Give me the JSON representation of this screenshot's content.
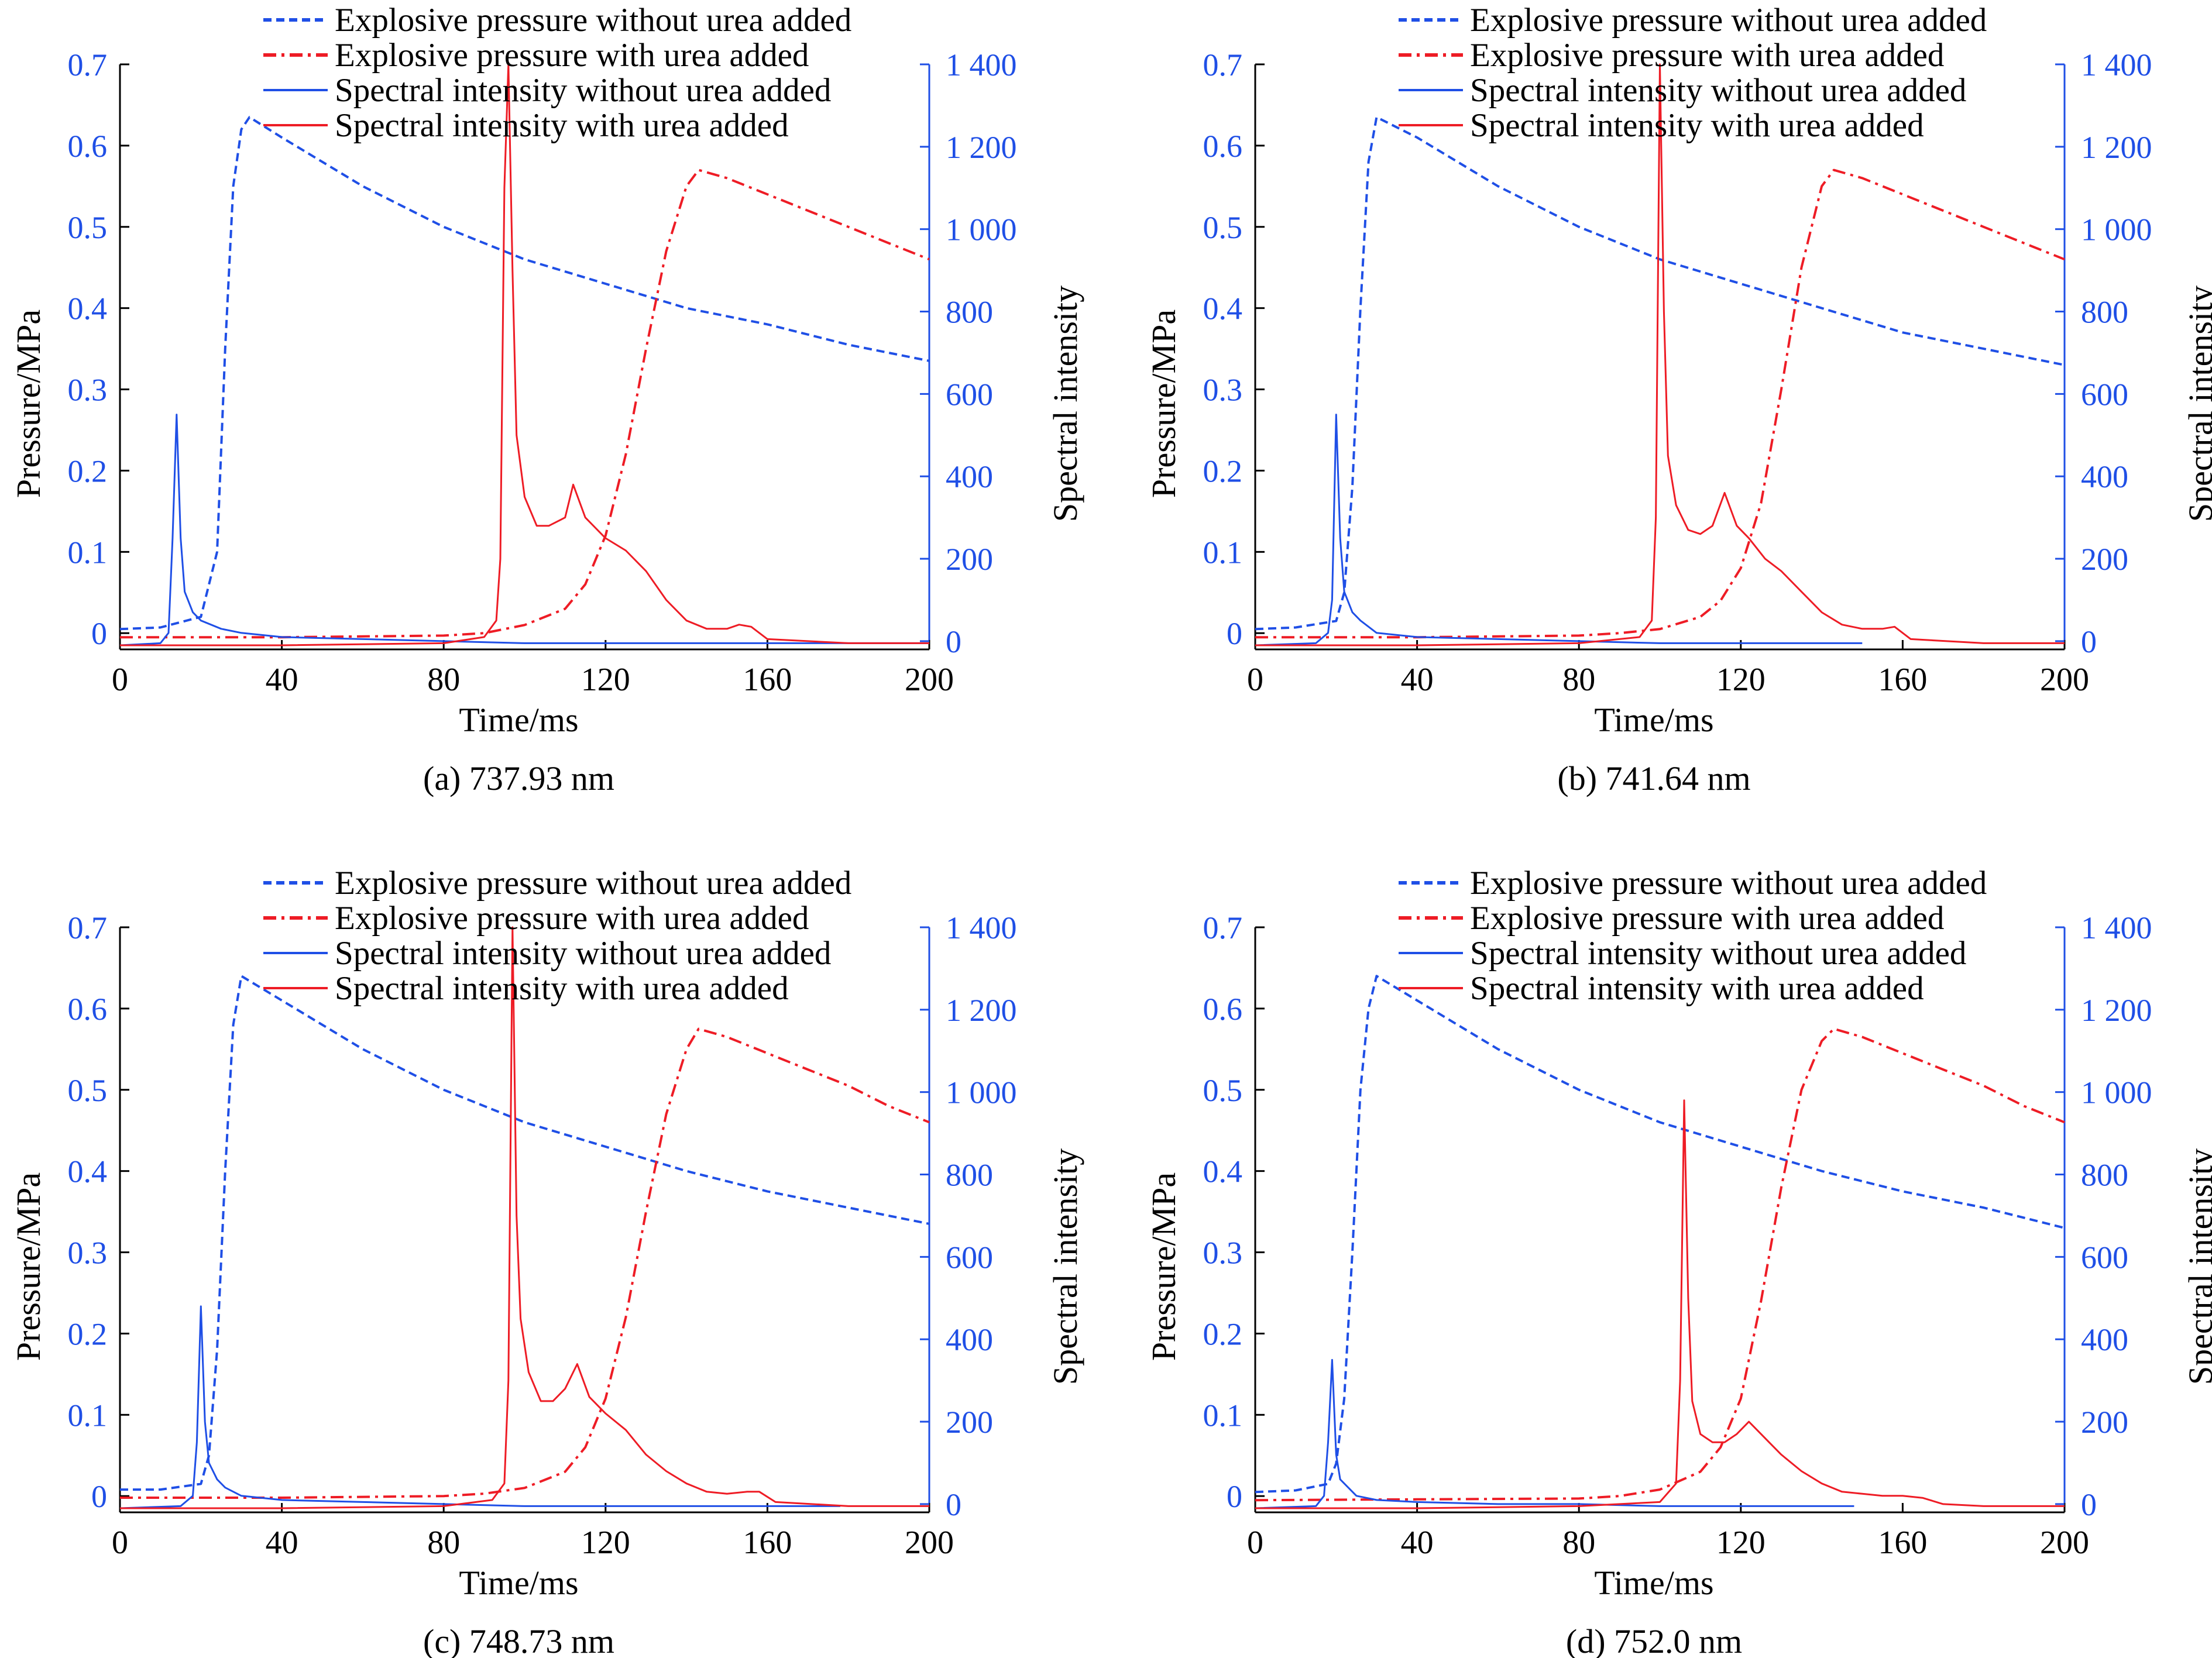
{
  "figure": {
    "legend": [
      {
        "label": "Explosive pressure without urea added",
        "color": "#1f4fe6",
        "dash": "dotted"
      },
      {
        "label": "Explosive pressure with urea added",
        "color": "#ee1c25",
        "dash": "dashdot"
      },
      {
        "label": "Spectral intensity without urea added",
        "color": "#1f4fe6",
        "dash": "solid"
      },
      {
        "label": "Spectral intensity with urea added",
        "color": "#ee1c25",
        "dash": "solid"
      }
    ],
    "xlabel": "Time/ms",
    "ylabel_left": "Pressure/MPa",
    "ylabel_right": "Spectral intensity",
    "xticks": [
      "0",
      "40",
      "80",
      "120",
      "160",
      "200"
    ],
    "yticks_left": [
      "0",
      "0.1",
      "0.2",
      "0.3",
      "0.4",
      "0.5",
      "0.6",
      "0.7"
    ],
    "yticks_right": [
      "0",
      "200",
      "400",
      "600",
      "800",
      "1 000",
      "1 200",
      "1 400"
    ],
    "colors": {
      "blue": "#1f4fe6",
      "red": "#ee1c25",
      "axis": "#000000"
    }
  },
  "chart_data": [
    {
      "type": "line",
      "caption": "(a) 737.93 nm",
      "xlim": [
        0,
        200
      ],
      "ylim_left": [
        -0.02,
        0.7
      ],
      "ylim_right": [
        -0.02,
        1.4
      ],
      "series": [
        {
          "name": "Explosive pressure without urea added",
          "axis": "left",
          "x": [
            0,
            10,
            20,
            24,
            26,
            28,
            30,
            32,
            40,
            60,
            80,
            100,
            120,
            140,
            160,
            180,
            200
          ],
          "y": [
            0.005,
            0.007,
            0.02,
            0.1,
            0.35,
            0.55,
            0.62,
            0.635,
            0.61,
            0.55,
            0.5,
            0.46,
            0.43,
            0.4,
            0.38,
            0.355,
            0.335
          ]
        },
        {
          "name": "Explosive pressure with urea added",
          "axis": "left",
          "x": [
            0,
            40,
            80,
            90,
            100,
            110,
            115,
            120,
            125,
            130,
            135,
            140,
            143,
            150,
            160,
            170,
            180,
            190,
            200
          ],
          "y": [
            -0.005,
            -0.005,
            -0.003,
            0.0,
            0.01,
            0.03,
            0.06,
            0.12,
            0.22,
            0.35,
            0.47,
            0.55,
            0.57,
            0.56,
            0.54,
            0.52,
            0.5,
            0.48,
            0.46
          ]
        },
        {
          "name": "Spectral intensity without urea added",
          "axis": "right",
          "x": [
            0,
            10,
            12,
            13,
            14,
            15,
            16,
            18,
            20,
            25,
            30,
            40,
            60,
            80,
            100,
            120,
            140,
            160,
            200
          ],
          "y": [
            -0.01,
            -0.005,
            0.02,
            0.25,
            0.55,
            0.25,
            0.12,
            0.07,
            0.05,
            0.03,
            0.02,
            0.01,
            0.005,
            0.0,
            -0.005,
            -0.005,
            -0.005,
            -0.005,
            -0.005
          ]
        },
        {
          "name": "Spectral intensity with urea added",
          "axis": "right",
          "x": [
            0,
            40,
            80,
            90,
            93,
            94,
            95,
            96,
            97,
            98,
            100,
            103,
            106,
            110,
            112,
            115,
            120,
            125,
            130,
            135,
            140,
            145,
            150,
            153,
            156,
            160,
            180,
            200
          ],
          "y": [
            -0.01,
            -0.01,
            -0.005,
            0.01,
            0.05,
            0.2,
            1.1,
            1.4,
            0.9,
            0.5,
            0.35,
            0.28,
            0.28,
            0.3,
            0.38,
            0.3,
            0.25,
            0.22,
            0.17,
            0.1,
            0.05,
            0.03,
            0.03,
            0.04,
            0.035,
            0.005,
            -0.005,
            -0.005
          ]
        }
      ]
    },
    {
      "type": "line",
      "caption": "(b) 741.64 nm",
      "xlim": [
        0,
        200
      ],
      "ylim_left": [
        -0.02,
        0.7
      ],
      "ylim_right": [
        -0.02,
        1.4
      ],
      "series": [
        {
          "name": "Explosive pressure without urea added",
          "axis": "left",
          "x": [
            0,
            10,
            20,
            22,
            24,
            26,
            28,
            30,
            40,
            60,
            80,
            100,
            120,
            140,
            160,
            180,
            200
          ],
          "y": [
            0.005,
            0.007,
            0.015,
            0.05,
            0.18,
            0.4,
            0.58,
            0.635,
            0.61,
            0.55,
            0.5,
            0.46,
            0.43,
            0.4,
            0.37,
            0.35,
            0.33
          ]
        },
        {
          "name": "Explosive pressure with urea added",
          "axis": "left",
          "x": [
            0,
            40,
            80,
            90,
            100,
            110,
            115,
            120,
            125,
            130,
            135,
            140,
            143,
            150,
            160,
            170,
            180,
            190,
            200
          ],
          "y": [
            -0.005,
            -0.005,
            -0.003,
            0.0,
            0.005,
            0.02,
            0.04,
            0.08,
            0.16,
            0.3,
            0.45,
            0.55,
            0.57,
            0.56,
            0.54,
            0.52,
            0.5,
            0.48,
            0.46
          ]
        },
        {
          "name": "Spectral intensity without urea added",
          "axis": "right",
          "x": [
            0,
            15,
            18,
            19,
            20,
            21,
            22,
            24,
            26,
            30,
            40,
            60,
            80,
            100,
            120,
            140,
            150
          ],
          "y": [
            -0.01,
            -0.005,
            0.02,
            0.1,
            0.55,
            0.25,
            0.12,
            0.07,
            0.05,
            0.02,
            0.01,
            0.005,
            0.0,
            -0.005,
            -0.005,
            -0.005,
            -0.005
          ]
        },
        {
          "name": "Spectral intensity with urea added",
          "axis": "right",
          "x": [
            0,
            40,
            80,
            95,
            98,
            99,
            100,
            101,
            102,
            104,
            107,
            110,
            113,
            116,
            119,
            122,
            126,
            130,
            135,
            140,
            145,
            150,
            155,
            158,
            162,
            180,
            200
          ],
          "y": [
            -0.01,
            -0.01,
            -0.005,
            0.01,
            0.05,
            0.3,
            1.4,
            0.8,
            0.45,
            0.33,
            0.27,
            0.26,
            0.28,
            0.36,
            0.28,
            0.25,
            0.2,
            0.17,
            0.12,
            0.07,
            0.04,
            0.03,
            0.03,
            0.035,
            0.005,
            -0.005,
            -0.005
          ]
        }
      ]
    },
    {
      "type": "line",
      "caption": "(c) 748.73 nm",
      "xlim": [
        0,
        200
      ],
      "ylim_left": [
        -0.02,
        0.7
      ],
      "ylim_right": [
        -0.02,
        1.4
      ],
      "series": [
        {
          "name": "Explosive pressure without urea added",
          "axis": "left",
          "x": [
            0,
            10,
            20,
            22,
            24,
            26,
            28,
            30,
            40,
            60,
            80,
            100,
            120,
            140,
            160,
            180,
            200
          ],
          "y": [
            0.008,
            0.008,
            0.015,
            0.05,
            0.18,
            0.4,
            0.58,
            0.64,
            0.61,
            0.55,
            0.5,
            0.46,
            0.43,
            0.4,
            0.375,
            0.355,
            0.335
          ]
        },
        {
          "name": "Explosive pressure with urea added",
          "axis": "left",
          "x": [
            0,
            40,
            80,
            90,
            100,
            110,
            115,
            120,
            125,
            130,
            135,
            140,
            143,
            150,
            160,
            170,
            180,
            190,
            200
          ],
          "y": [
            -0.002,
            -0.002,
            0.0,
            0.003,
            0.01,
            0.03,
            0.06,
            0.12,
            0.22,
            0.35,
            0.47,
            0.55,
            0.575,
            0.565,
            0.545,
            0.525,
            0.505,
            0.48,
            0.46
          ]
        },
        {
          "name": "Spectral intensity without urea added",
          "axis": "right",
          "x": [
            0,
            15,
            18,
            19,
            20,
            21,
            22,
            24,
            26,
            30,
            40,
            60,
            80,
            100,
            120,
            140,
            160,
            178
          ],
          "y": [
            -0.01,
            -0.005,
            0.02,
            0.15,
            0.48,
            0.2,
            0.1,
            0.06,
            0.04,
            0.02,
            0.01,
            0.005,
            0.0,
            -0.005,
            -0.005,
            -0.005,
            -0.005,
            -0.005
          ]
        },
        {
          "name": "Spectral intensity with urea added",
          "axis": "right",
          "x": [
            0,
            40,
            80,
            92,
            95,
            96,
            97,
            98,
            99,
            101,
            104,
            107,
            110,
            113,
            116,
            120,
            125,
            130,
            135,
            140,
            145,
            150,
            155,
            158,
            162,
            180,
            200
          ],
          "y": [
            -0.01,
            -0.01,
            -0.005,
            0.01,
            0.05,
            0.3,
            1.4,
            0.7,
            0.45,
            0.32,
            0.25,
            0.25,
            0.28,
            0.34,
            0.26,
            0.22,
            0.18,
            0.12,
            0.08,
            0.05,
            0.03,
            0.025,
            0.03,
            0.03,
            0.005,
            -0.005,
            -0.005
          ]
        }
      ]
    },
    {
      "type": "line",
      "caption": "(d) 752.0 nm",
      "xlim": [
        0,
        200
      ],
      "ylim_left": [
        -0.02,
        0.7
      ],
      "ylim_right": [
        -0.02,
        1.4
      ],
      "series": [
        {
          "name": "Explosive pressure without urea added",
          "axis": "left",
          "x": [
            0,
            10,
            18,
            20,
            22,
            24,
            26,
            28,
            30,
            40,
            60,
            80,
            100,
            120,
            140,
            160,
            180,
            200
          ],
          "y": [
            0.005,
            0.007,
            0.015,
            0.04,
            0.12,
            0.3,
            0.5,
            0.6,
            0.64,
            0.61,
            0.55,
            0.5,
            0.46,
            0.43,
            0.4,
            0.375,
            0.355,
            0.33
          ]
        },
        {
          "name": "Explosive pressure with urea added",
          "axis": "left",
          "x": [
            0,
            40,
            80,
            90,
            100,
            110,
            115,
            120,
            125,
            130,
            135,
            140,
            143,
            150,
            160,
            170,
            180,
            190,
            200
          ],
          "y": [
            -0.005,
            -0.004,
            -0.003,
            0.0,
            0.008,
            0.03,
            0.06,
            0.12,
            0.24,
            0.38,
            0.5,
            0.56,
            0.575,
            0.565,
            0.545,
            0.525,
            0.505,
            0.48,
            0.46
          ]
        },
        {
          "name": "Spectral intensity without urea added",
          "axis": "right",
          "x": [
            0,
            15,
            17,
            18,
            19,
            20,
            21,
            23,
            25,
            30,
            40,
            60,
            80,
            100,
            120,
            140,
            148
          ],
          "y": [
            -0.01,
            -0.005,
            0.02,
            0.15,
            0.35,
            0.12,
            0.06,
            0.04,
            0.02,
            0.01,
            0.005,
            0.0,
            0.0,
            -0.005,
            -0.005,
            -0.005,
            -0.005
          ]
        },
        {
          "name": "Spectral intensity with urea added",
          "axis": "right",
          "x": [
            0,
            40,
            80,
            100,
            104,
            105,
            106,
            107,
            108,
            110,
            113,
            116,
            119,
            122,
            124,
            127,
            130,
            135,
            140,
            145,
            150,
            155,
            160,
            165,
            170,
            180,
            200
          ],
          "y": [
            -0.01,
            -0.01,
            -0.005,
            0.005,
            0.05,
            0.3,
            0.98,
            0.5,
            0.25,
            0.17,
            0.15,
            0.15,
            0.17,
            0.2,
            0.18,
            0.15,
            0.12,
            0.08,
            0.05,
            0.03,
            0.025,
            0.02,
            0.02,
            0.015,
            0.0,
            -0.005,
            -0.005
          ]
        }
      ]
    }
  ]
}
